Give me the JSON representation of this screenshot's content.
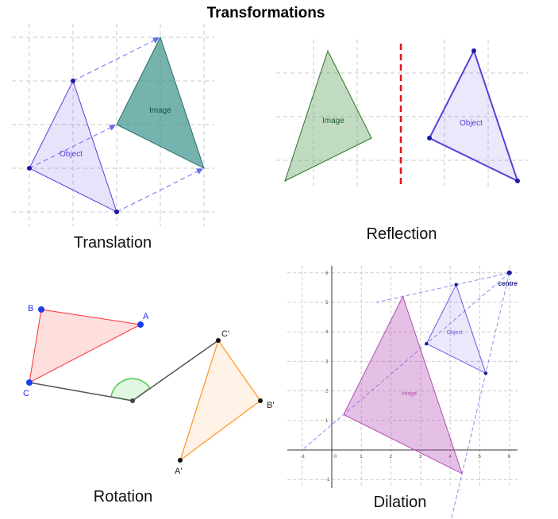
{
  "title": "Transformations",
  "panels": {
    "translation": {
      "caption": "Translation",
      "object_label": "Object",
      "image_label": "Image"
    },
    "reflection": {
      "caption": "Reflection",
      "object_label": "Object",
      "image_label": "Image"
    },
    "rotation": {
      "caption": "Rotation",
      "labels": {
        "A": "A",
        "B": "B",
        "C": "C",
        "A2": "A'",
        "B2": "B'",
        "C2": "C'"
      }
    },
    "dilation": {
      "caption": "Dilation",
      "object_label": "Object",
      "image_label": "Image",
      "centre_label": "centre",
      "x_ticks": [
        "-1",
        "0",
        "1",
        "2",
        "3",
        "4",
        "5",
        "6"
      ],
      "y_ticks": [
        "-1",
        "0",
        "1",
        "2",
        "3",
        "4",
        "5",
        "6"
      ],
      "centre": [
        6,
        6
      ],
      "object": [
        [
          4.2,
          5.6
        ],
        [
          3.2,
          3.6
        ],
        [
          5.2,
          2.6
        ]
      ],
      "image": [
        [
          2.4,
          5.2
        ],
        [
          0.4,
          1.2
        ],
        [
          4.4,
          -0.8
        ]
      ]
    }
  },
  "colors": {
    "object": "#5a3fd9",
    "image_teal": "#2e8b82",
    "reflection_line": "#e0161b",
    "rotation_object": "#ff3030",
    "rotation_image": "#ff9a30",
    "dilation_image": "#b44bb4"
  }
}
